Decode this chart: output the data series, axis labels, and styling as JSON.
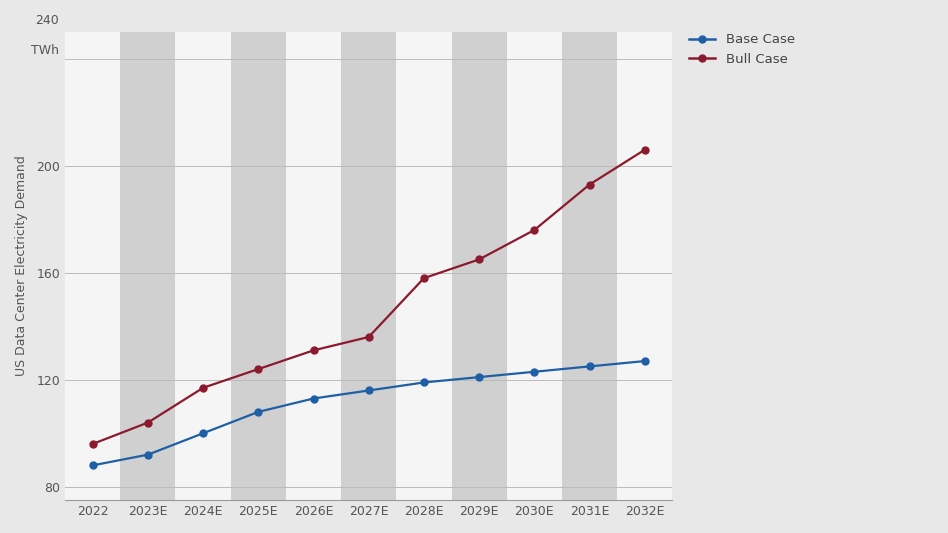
{
  "years": [
    "2022",
    "2023E",
    "2024E",
    "2025E",
    "2026E",
    "2027E",
    "2028E",
    "2029E",
    "2030E",
    "2031E",
    "2032E"
  ],
  "base_case": [
    88,
    92,
    100,
    108,
    113,
    116,
    119,
    121,
    123,
    125,
    127
  ],
  "bull_case": [
    96,
    104,
    117,
    124,
    131,
    136,
    158,
    165,
    176,
    193,
    206
  ],
  "base_color": "#1f5fa6",
  "bull_color": "#8b1a2e",
  "bg_color": "#e8e8e8",
  "plot_bg_color": "#f5f5f5",
  "stripe_color": "#d0d0d0",
  "ylim": [
    75,
    250
  ],
  "yticks": [
    80,
    120,
    160,
    200,
    240
  ],
  "ylabel": "US Data Center Electricity Demand",
  "y_unit": "TWh",
  "y_top_label": "240",
  "legend_base": "Base Case",
  "legend_bull": "Bull Case"
}
